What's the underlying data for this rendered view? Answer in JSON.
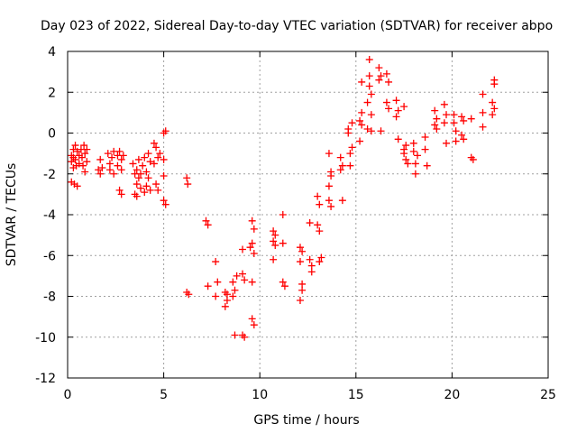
{
  "chart_data": {
    "type": "scatter",
    "title": "Day 023 of 2022, Sidereal Day-to-day VTEC variation (SDTVAR) for receiver abpo",
    "xlabel": "GPS time / hours",
    "ylabel": "SDTVAR / TECUs",
    "xlim": [
      0,
      25
    ],
    "ylim": [
      -12,
      4
    ],
    "xticks": [
      0,
      5,
      10,
      15,
      20,
      25
    ],
    "yticks": [
      -12,
      -10,
      -8,
      -6,
      -4,
      -2,
      0,
      2,
      4
    ],
    "grid": true,
    "marker": "plus",
    "color": "#ff0000",
    "series": [
      {
        "name": "SDTVAR",
        "points": [
          [
            0.2,
            -1.1
          ],
          [
            0.2,
            -1.4
          ],
          [
            0.2,
            -2.4
          ],
          [
            0.3,
            -0.8
          ],
          [
            0.3,
            -1.2
          ],
          [
            0.3,
            -1.7
          ],
          [
            0.35,
            -2.5
          ],
          [
            0.4,
            -0.6
          ],
          [
            0.4,
            -1.3
          ],
          [
            0.45,
            -1.6
          ],
          [
            0.5,
            -0.9
          ],
          [
            0.5,
            -2.6
          ],
          [
            0.6,
            -1.1
          ],
          [
            0.6,
            -1.5
          ],
          [
            0.7,
            -0.8
          ],
          [
            0.75,
            -1.2
          ],
          [
            0.8,
            -1.6
          ],
          [
            0.85,
            -0.6
          ],
          [
            0.9,
            -1.0
          ],
          [
            0.9,
            -1.9
          ],
          [
            1.0,
            -1.4
          ],
          [
            1.0,
            -0.8
          ],
          [
            1.6,
            -1.8
          ],
          [
            1.7,
            -1.3
          ],
          [
            1.7,
            -2.0
          ],
          [
            1.8,
            -1.7
          ],
          [
            2.1,
            -1.0
          ],
          [
            2.2,
            -1.5
          ],
          [
            2.2,
            -1.8
          ],
          [
            2.3,
            -1.2
          ],
          [
            2.4,
            -2.0
          ],
          [
            2.4,
            -0.9
          ],
          [
            2.6,
            -1.1
          ],
          [
            2.6,
            -1.6
          ],
          [
            2.7,
            -2.8
          ],
          [
            2.7,
            -0.9
          ],
          [
            2.8,
            -1.3
          ],
          [
            2.8,
            -1.8
          ],
          [
            2.8,
            -3.0
          ],
          [
            2.9,
            -1.1
          ],
          [
            3.4,
            -1.5
          ],
          [
            3.5,
            -2.0
          ],
          [
            3.5,
            -3.0
          ],
          [
            3.6,
            -1.8
          ],
          [
            3.6,
            -2.5
          ],
          [
            3.6,
            -3.1
          ],
          [
            3.7,
            -2.2
          ],
          [
            3.7,
            -1.3
          ],
          [
            3.8,
            -2.0
          ],
          [
            3.8,
            -2.7
          ],
          [
            3.9,
            -1.6
          ],
          [
            4.0,
            -2.9
          ],
          [
            4.0,
            -1.2
          ],
          [
            4.1,
            -1.9
          ],
          [
            4.1,
            -2.6
          ],
          [
            4.2,
            -1.0
          ],
          [
            4.2,
            -2.2
          ],
          [
            4.3,
            -1.4
          ],
          [
            4.3,
            -2.8
          ],
          [
            4.5,
            -0.5
          ],
          [
            4.5,
            -1.5
          ],
          [
            4.6,
            -2.5
          ],
          [
            4.6,
            -0.7
          ],
          [
            4.7,
            -1.2
          ],
          [
            4.7,
            -2.8
          ],
          [
            4.8,
            -1.0
          ],
          [
            5.0,
            0.0
          ],
          [
            5.0,
            -1.3
          ],
          [
            5.0,
            -2.1
          ],
          [
            5.0,
            -3.3
          ],
          [
            5.1,
            0.1
          ],
          [
            5.1,
            -3.5
          ],
          [
            6.2,
            -2.2
          ],
          [
            6.25,
            -2.5
          ],
          [
            6.2,
            -7.8
          ],
          [
            6.3,
            -7.9
          ],
          [
            7.2,
            -4.3
          ],
          [
            7.3,
            -4.5
          ],
          [
            7.3,
            -7.5
          ],
          [
            7.7,
            -6.3
          ],
          [
            7.7,
            -8.0
          ],
          [
            7.8,
            -7.3
          ],
          [
            8.2,
            -7.8
          ],
          [
            8.2,
            -8.5
          ],
          [
            8.3,
            -8.2
          ],
          [
            8.3,
            -7.9
          ],
          [
            8.6,
            -7.3
          ],
          [
            8.6,
            -8.0
          ],
          [
            8.7,
            -7.7
          ],
          [
            8.7,
            -9.9
          ],
          [
            8.8,
            -7.0
          ],
          [
            9.1,
            -5.7
          ],
          [
            9.1,
            -6.9
          ],
          [
            9.1,
            -9.9
          ],
          [
            9.2,
            -7.2
          ],
          [
            9.2,
            -10.0
          ],
          [
            9.5,
            -5.6
          ],
          [
            9.6,
            -4.3
          ],
          [
            9.6,
            -5.4
          ],
          [
            9.6,
            -7.3
          ],
          [
            9.6,
            -9.1
          ],
          [
            9.7,
            -4.7
          ],
          [
            9.7,
            -5.9
          ],
          [
            9.7,
            -9.4
          ],
          [
            10.7,
            -4.8
          ],
          [
            10.7,
            -5.3
          ],
          [
            10.7,
            -6.2
          ],
          [
            10.8,
            -5.0
          ],
          [
            10.8,
            -5.5
          ],
          [
            11.2,
            -4.0
          ],
          [
            11.2,
            -5.4
          ],
          [
            11.2,
            -7.3
          ],
          [
            11.3,
            -7.5
          ],
          [
            12.1,
            -5.6
          ],
          [
            12.1,
            -6.3
          ],
          [
            12.1,
            -8.2
          ],
          [
            12.2,
            -7.4
          ],
          [
            12.2,
            -5.8
          ],
          [
            12.2,
            -7.7
          ],
          [
            12.6,
            -4.4
          ],
          [
            12.6,
            -6.2
          ],
          [
            12.7,
            -6.5
          ],
          [
            12.7,
            -6.8
          ],
          [
            13.0,
            -3.1
          ],
          [
            13.0,
            -4.5
          ],
          [
            13.1,
            -6.3
          ],
          [
            13.1,
            -3.5
          ],
          [
            13.1,
            -4.8
          ],
          [
            13.2,
            -6.1
          ],
          [
            13.6,
            -1.0
          ],
          [
            13.6,
            -2.6
          ],
          [
            13.6,
            -3.3
          ],
          [
            13.7,
            -1.9
          ],
          [
            13.7,
            -3.6
          ],
          [
            13.7,
            -2.1
          ],
          [
            14.2,
            -1.2
          ],
          [
            14.2,
            -1.8
          ],
          [
            14.3,
            -3.3
          ],
          [
            14.3,
            -1.6
          ],
          [
            14.6,
            0.0
          ],
          [
            14.6,
            0.2
          ],
          [
            14.7,
            -1.0
          ],
          [
            14.7,
            -1.6
          ],
          [
            14.8,
            0.5
          ],
          [
            14.8,
            -0.7
          ],
          [
            15.2,
            -0.4
          ],
          [
            15.2,
            0.6
          ],
          [
            15.3,
            2.5
          ],
          [
            15.3,
            1.0
          ],
          [
            15.3,
            0.4
          ],
          [
            15.6,
            0.2
          ],
          [
            15.7,
            3.6
          ],
          [
            15.7,
            2.8
          ],
          [
            15.8,
            1.9
          ],
          [
            15.8,
            0.9
          ],
          [
            15.8,
            0.1
          ],
          [
            15.6,
            1.5
          ],
          [
            15.7,
            2.3
          ],
          [
            16.2,
            3.2
          ],
          [
            16.2,
            2.6
          ],
          [
            16.3,
            0.1
          ],
          [
            16.3,
            2.8
          ],
          [
            16.6,
            1.5
          ],
          [
            16.6,
            2.9
          ],
          [
            16.7,
            1.2
          ],
          [
            16.7,
            2.5
          ],
          [
            17.1,
            0.8
          ],
          [
            17.1,
            1.6
          ],
          [
            17.2,
            1.1
          ],
          [
            17.2,
            -0.3
          ],
          [
            17.5,
            1.3
          ],
          [
            17.5,
            -0.8
          ],
          [
            17.6,
            -1.3
          ],
          [
            17.6,
            -0.6
          ],
          [
            17.7,
            -1.5
          ],
          [
            17.5,
            -1.0
          ],
          [
            18.0,
            -0.5
          ],
          [
            18.0,
            -0.9
          ],
          [
            18.1,
            -1.5
          ],
          [
            18.1,
            -2.0
          ],
          [
            18.2,
            -1.1
          ],
          [
            18.6,
            -0.2
          ],
          [
            18.6,
            -0.8
          ],
          [
            18.7,
            -1.6
          ],
          [
            19.1,
            0.4
          ],
          [
            19.1,
            1.1
          ],
          [
            19.2,
            0.2
          ],
          [
            19.2,
            0.7
          ],
          [
            19.6,
            1.4
          ],
          [
            19.6,
            0.5
          ],
          [
            19.7,
            -0.5
          ],
          [
            19.7,
            0.9
          ],
          [
            20.1,
            0.9
          ],
          [
            20.1,
            0.5
          ],
          [
            20.2,
            -0.4
          ],
          [
            20.2,
            0.1
          ],
          [
            20.5,
            0.8
          ],
          [
            20.5,
            -0.1
          ],
          [
            20.6,
            -0.3
          ],
          [
            20.6,
            0.6
          ],
          [
            21.0,
            0.7
          ],
          [
            21.0,
            -1.2
          ],
          [
            21.1,
            -1.3
          ],
          [
            21.6,
            0.3
          ],
          [
            21.6,
            1.0
          ],
          [
            21.6,
            1.9
          ],
          [
            22.1,
            1.5
          ],
          [
            22.1,
            0.9
          ],
          [
            22.2,
            2.6
          ],
          [
            22.2,
            1.2
          ],
          [
            22.2,
            2.4
          ]
        ]
      }
    ]
  }
}
